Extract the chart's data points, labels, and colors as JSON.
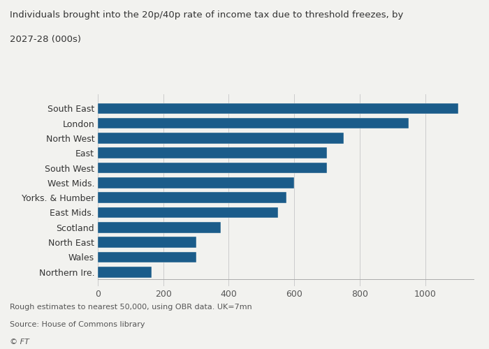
{
  "categories": [
    "South East",
    "London",
    "North West",
    "East",
    "South West",
    "West Mids.",
    "Yorks. & Humber",
    "East Mids.",
    "Scotland",
    "North East",
    "Wales",
    "Northern Ire."
  ],
  "values": [
    1100,
    950,
    750,
    700,
    700,
    600,
    575,
    550,
    375,
    300,
    300,
    165
  ],
  "bar_color": "#1b5c8a",
  "title_line1": "Individuals brought into the 20p/40p rate of income tax due to threshold freezes, by",
  "title_line2": "2027-28 (000s)",
  "title_fontsize": 9.5,
  "xlim": [
    0,
    1150
  ],
  "xticks": [
    0,
    200,
    400,
    600,
    800,
    1000
  ],
  "footnote1": "Rough estimates to nearest 50,000, using OBR data. UK=7mn",
  "footnote2": "Source: House of Commons library",
  "footnote3": "© FT",
  "background_color": "#f2f2ef",
  "label_fontsize": 9,
  "tick_fontsize": 9,
  "footnote_fontsize": 8
}
